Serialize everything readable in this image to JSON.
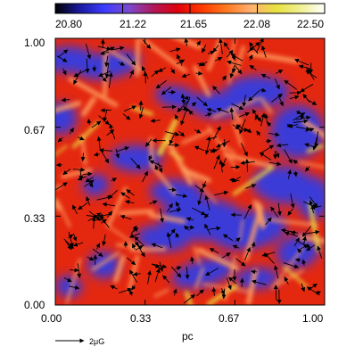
{
  "colorbar": {
    "ticks": [
      "20.80",
      "21.22",
      "21.65",
      "22.08",
      "22.50"
    ],
    "range": [
      20.8,
      22.5
    ],
    "colors": [
      "#000000",
      "#1a1aa0",
      "#3c3cff",
      "#7a4ad0",
      "#b0185a",
      "#e0000a",
      "#ff3a00",
      "#ff7a20",
      "#ffb070",
      "#e8e040",
      "#f0f090",
      "#ffffff"
    ]
  },
  "map": {
    "x_axis": {
      "label": "pc",
      "ticks": [
        "0.00",
        "0.33",
        "0.67",
        "1.00"
      ],
      "range": [
        0,
        1
      ]
    },
    "y_axis": {
      "ticks": [
        "0.00",
        "0.33",
        "0.67",
        "1.00"
      ],
      "range": [
        0,
        1
      ]
    },
    "background_color": "#e42810",
    "low_region_color": "#3a3ad8",
    "high_region_color": "#ffa060",
    "arrow_color": "#000000"
  },
  "scale_arrow": {
    "label": "2μG"
  }
}
